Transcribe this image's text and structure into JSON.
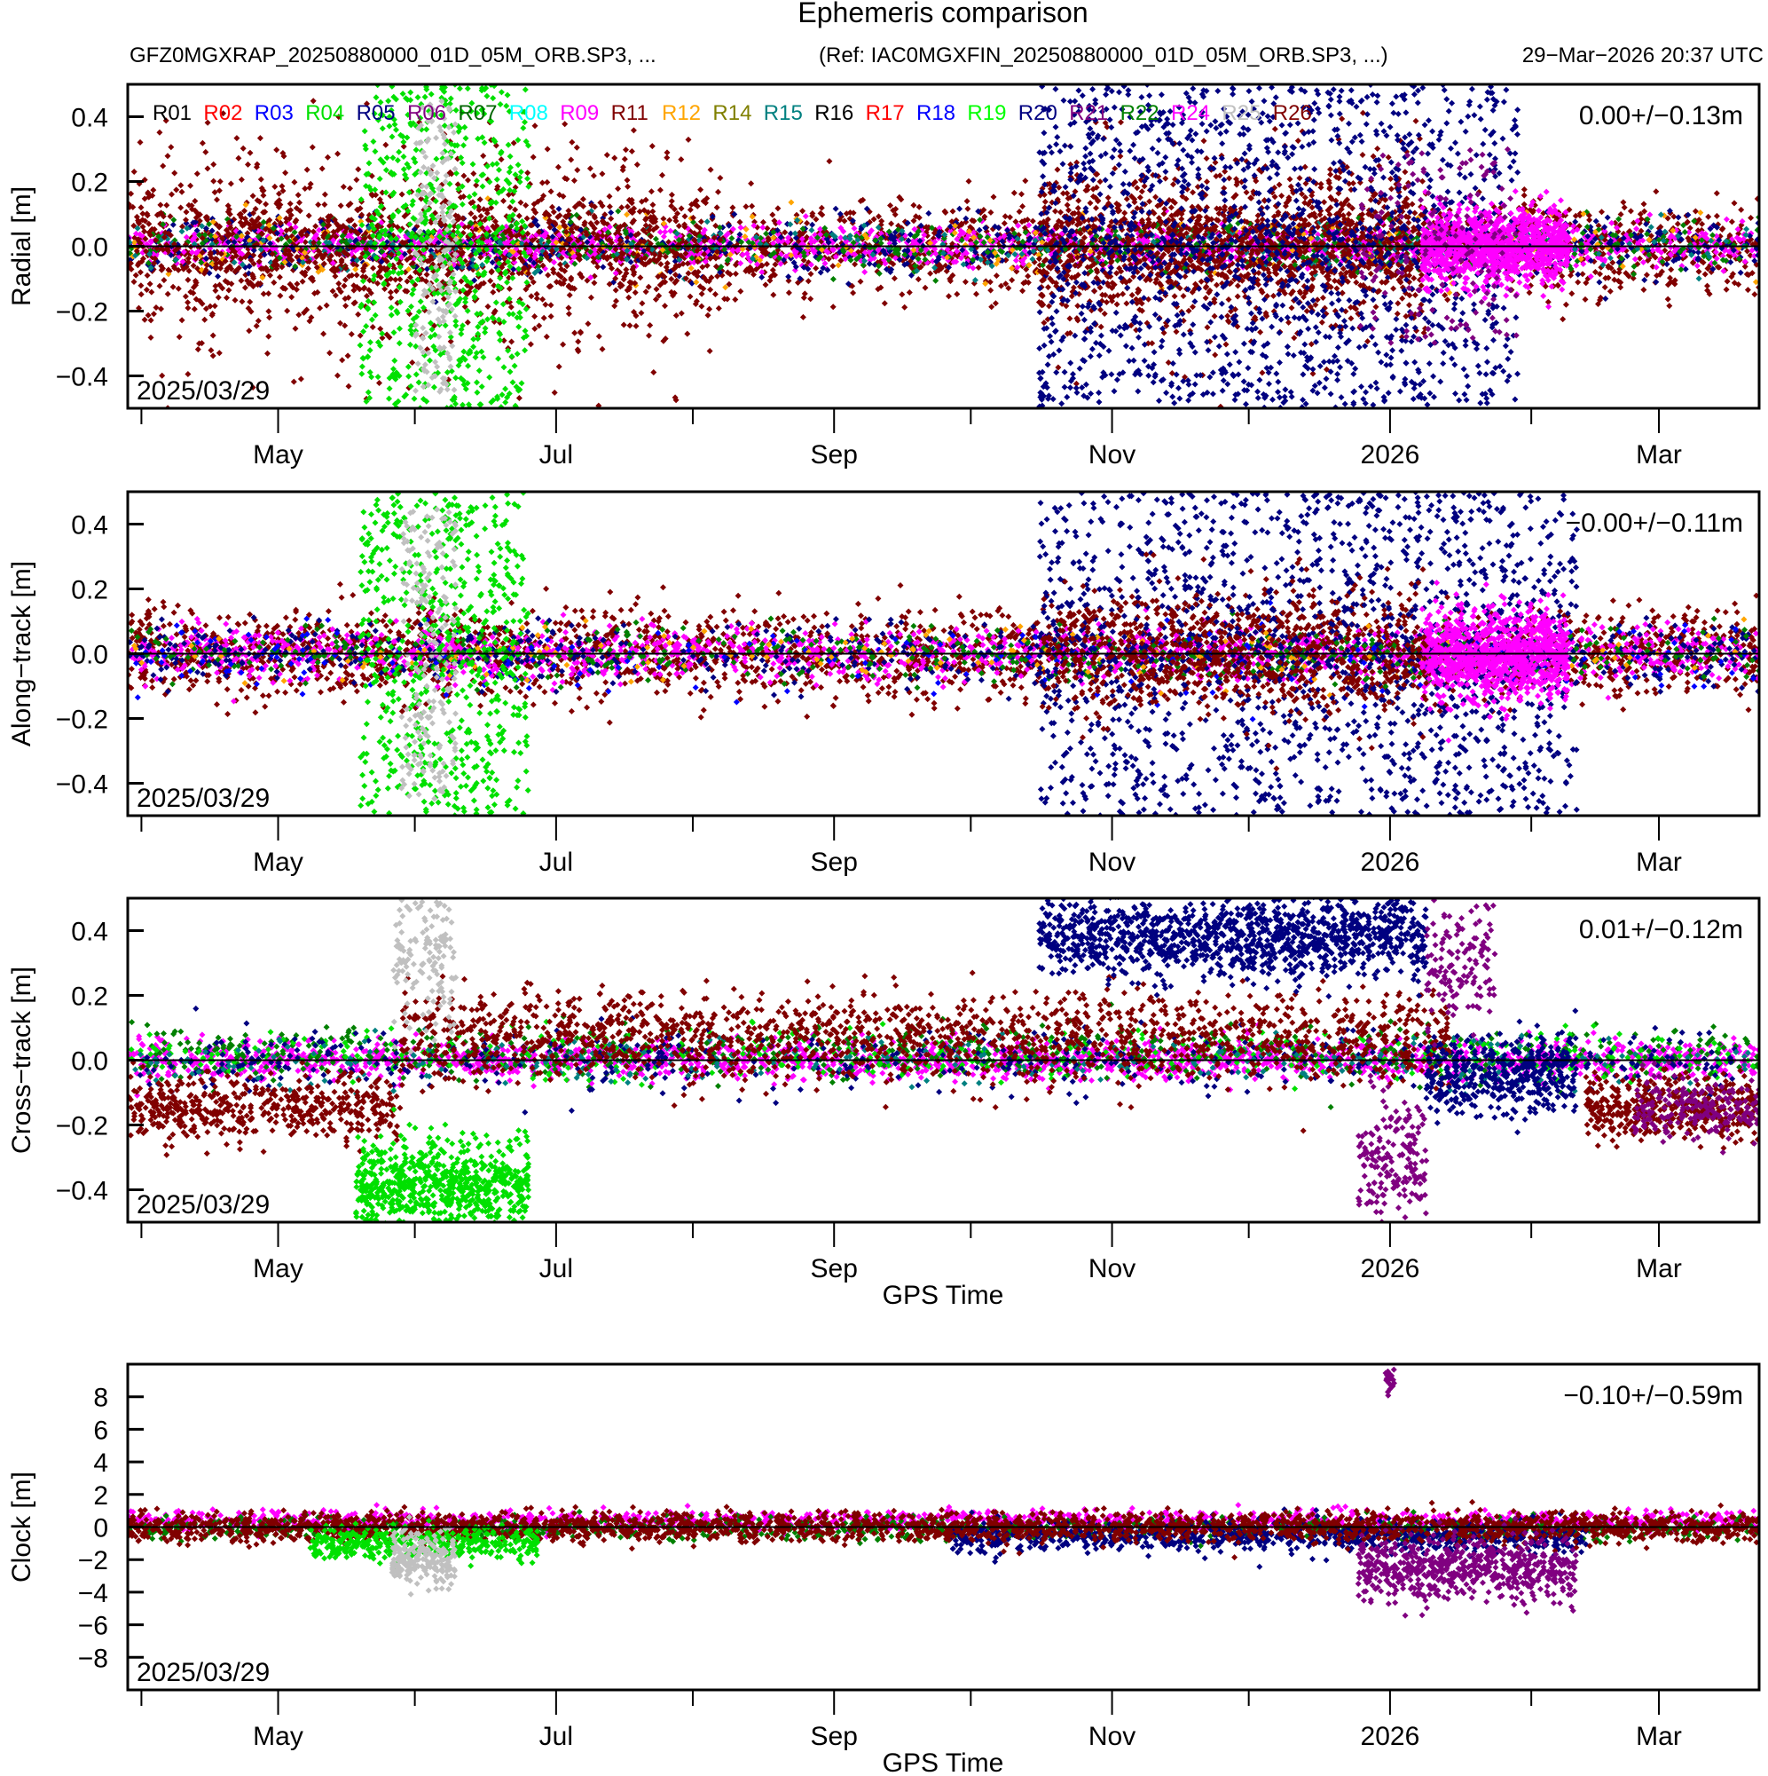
{
  "chart_data": {
    "type": "scatter",
    "title": "Ephemeris comparison",
    "subtitle_left": "GFZ0MGXRAP_20250880000_01D_05M_ORB.SP3, ...",
    "subtitle_ref": "(Ref: IAC0MGXFIN_20250880000_01D_05M_ORB.SP3, ...)",
    "timestamp": "29−Mar−2026 20:37 UTC",
    "x_range_days": [
      0,
      358
    ],
    "x_start_date": "2025/03/29",
    "x_ticks": [
      {
        "day": 3,
        "label": ""
      },
      {
        "day": 33,
        "label": "May"
      },
      {
        "day": 63,
        "label": ""
      },
      {
        "day": 94,
        "label": "Jul"
      },
      {
        "day": 124,
        "label": ""
      },
      {
        "day": 155,
        "label": "Sep"
      },
      {
        "day": 185,
        "label": ""
      },
      {
        "day": 216,
        "label": "Nov"
      },
      {
        "day": 246,
        "label": ""
      },
      {
        "day": 277,
        "label": "2026"
      },
      {
        "day": 308,
        "label": ""
      },
      {
        "day": 336,
        "label": "Mar"
      }
    ],
    "legend": [
      {
        "name": "R01",
        "color": "#000000"
      },
      {
        "name": "R02",
        "color": "#ff0000"
      },
      {
        "name": "R03",
        "color": "#0000ff"
      },
      {
        "name": "R04",
        "color": "#00e000"
      },
      {
        "name": "R05",
        "color": "#000080"
      },
      {
        "name": "R06",
        "color": "#800080"
      },
      {
        "name": "R07",
        "color": "#006400"
      },
      {
        "name": "R08",
        "color": "#00ffff"
      },
      {
        "name": "R09",
        "color": "#ff00ff"
      },
      {
        "name": "R11",
        "color": "#800000"
      },
      {
        "name": "R12",
        "color": "#ffa500"
      },
      {
        "name": "R14",
        "color": "#808000"
      },
      {
        "name": "R15",
        "color": "#008080"
      },
      {
        "name": "R16",
        "color": "#000000"
      },
      {
        "name": "R17",
        "color": "#ff0000"
      },
      {
        "name": "R18",
        "color": "#0000ff"
      },
      {
        "name": "R19",
        "color": "#00ff00"
      },
      {
        "name": "R20",
        "color": "#000080"
      },
      {
        "name": "R21",
        "color": "#800080"
      },
      {
        "name": "R22",
        "color": "#008000"
      },
      {
        "name": "R24",
        "color": "#ff00ff"
      },
      {
        "name": "R25",
        "color": "#c0c0c0"
      },
      {
        "name": "R26",
        "color": "#800000"
      }
    ],
    "panels": [
      {
        "id": "radial",
        "ylabel": "Radial [m]",
        "ylim": [
          -0.5,
          0.5
        ],
        "yticks": [
          -0.4,
          -0.2,
          0.0,
          0.2,
          0.4
        ],
        "ytick_labels": [
          "−0.4",
          "−0.2",
          "0.0",
          "0.2",
          "0.4"
        ],
        "stat": "0.00+/−0.13m",
        "date_label": "2025/03/29",
        "show_legend": true,
        "xlabel": "",
        "bands": [
          {
            "color": "#800000",
            "d0": 0,
            "d1": 358,
            "center": 0.0,
            "spread": 0.07,
            "n": 2600
          },
          {
            "color": "#ff00ff",
            "d0": 0,
            "d1": 358,
            "center": 0.0,
            "spread": 0.03,
            "n": 1400
          },
          {
            "color": "#000080",
            "d0": 0,
            "d1": 358,
            "center": 0.0,
            "spread": 0.05,
            "n": 700
          },
          {
            "color": "#008000",
            "d0": 0,
            "d1": 358,
            "center": 0.0,
            "spread": 0.04,
            "n": 500
          },
          {
            "color": "#ffa500",
            "d0": 0,
            "d1": 358,
            "center": 0.0,
            "spread": 0.05,
            "n": 200
          },
          {
            "color": "#008080",
            "d0": 0,
            "d1": 358,
            "center": 0.0,
            "spread": 0.04,
            "n": 250
          },
          {
            "color": "#800000",
            "d0": 0,
            "d1": 130,
            "center": 0.0,
            "spread": 0.16,
            "n": 900
          },
          {
            "color": "#800000",
            "d0": 200,
            "d1": 285,
            "center": 0.0,
            "spread": 0.14,
            "n": 1100
          },
          {
            "color": "#00e000",
            "d0": 51,
            "d1": 88,
            "center": 0.0,
            "spread": 0.5,
            "n": 600,
            "uniform": true
          },
          {
            "color": "#c0c0c0",
            "d0": 63,
            "d1": 72,
            "center": 0.0,
            "spread": 0.45,
            "n": 180,
            "uniform": true
          },
          {
            "color": "#000080",
            "d0": 200,
            "d1": 305,
            "center": 0.0,
            "spread": 0.5,
            "n": 1500,
            "uniform": true
          },
          {
            "color": "#ff00ff",
            "d0": 284,
            "d1": 316,
            "center": 0.0,
            "spread": 0.06,
            "n": 900
          },
          {
            "color": "#800080",
            "d0": 270,
            "d1": 305,
            "center": 0.0,
            "spread": 0.3,
            "n": 160,
            "uniform": true
          }
        ]
      },
      {
        "id": "along",
        "ylabel": "Along−track [m]",
        "ylim": [
          -0.5,
          0.5
        ],
        "yticks": [
          -0.4,
          -0.2,
          0.0,
          0.2,
          0.4
        ],
        "ytick_labels": [
          "−0.4",
          "−0.2",
          "0.0",
          "0.2",
          "0.4"
        ],
        "stat": "−0.00+/−0.11m",
        "date_label": "2025/03/29",
        "show_legend": false,
        "xlabel": "",
        "bands": [
          {
            "color": "#800000",
            "d0": 0,
            "d1": 358,
            "center": 0.0,
            "spread": 0.07,
            "n": 2600
          },
          {
            "color": "#ff00ff",
            "d0": 0,
            "d1": 358,
            "center": 0.0,
            "spread": 0.04,
            "n": 1400
          },
          {
            "color": "#000080",
            "d0": 0,
            "d1": 358,
            "center": 0.0,
            "spread": 0.05,
            "n": 700
          },
          {
            "color": "#008000",
            "d0": 0,
            "d1": 358,
            "center": 0.0,
            "spread": 0.04,
            "n": 500
          },
          {
            "color": "#0000ff",
            "d0": 0,
            "d1": 358,
            "center": 0.0,
            "spread": 0.06,
            "n": 200
          },
          {
            "color": "#ffa500",
            "d0": 0,
            "d1": 358,
            "center": 0.0,
            "spread": 0.05,
            "n": 150
          },
          {
            "color": "#00e000",
            "d0": 51,
            "d1": 88,
            "center": 0.0,
            "spread": 0.5,
            "n": 600,
            "uniform": true
          },
          {
            "color": "#c0c0c0",
            "d0": 60,
            "d1": 72,
            "center": 0.0,
            "spread": 0.45,
            "n": 200,
            "uniform": true
          },
          {
            "color": "#000080",
            "d0": 200,
            "d1": 318,
            "center": 0.0,
            "spread": 0.5,
            "n": 1500,
            "uniform": true
          },
          {
            "color": "#ff00ff",
            "d0": 284,
            "d1": 316,
            "center": 0.0,
            "spread": 0.07,
            "n": 900
          },
          {
            "color": "#800000",
            "d0": 200,
            "d1": 285,
            "center": 0.0,
            "spread": 0.1,
            "n": 600
          }
        ]
      },
      {
        "id": "cross",
        "ylabel": "Cross−track [m]",
        "ylim": [
          -0.5,
          0.5
        ],
        "yticks": [
          -0.4,
          -0.2,
          0.0,
          0.2,
          0.4
        ],
        "ytick_labels": [
          "−0.4",
          "−0.2",
          "0.0",
          "0.2",
          "0.4"
        ],
        "stat": "0.01+/−0.12m",
        "date_label": "2025/03/29",
        "show_legend": false,
        "xlabel": "GPS Time",
        "bands": [
          {
            "color": "#ff00ff",
            "d0": 0,
            "d1": 358,
            "center": 0.0,
            "spread": 0.03,
            "n": 1800
          },
          {
            "color": "#008000",
            "d0": 0,
            "d1": 358,
            "center": 0.02,
            "spread": 0.04,
            "n": 700
          },
          {
            "color": "#00e000",
            "d0": 0,
            "d1": 358,
            "center": 0.02,
            "spread": 0.04,
            "n": 400
          },
          {
            "color": "#000080",
            "d0": 0,
            "d1": 358,
            "center": 0.0,
            "spread": 0.05,
            "n": 500
          },
          {
            "color": "#008080",
            "d0": 0,
            "d1": 358,
            "center": 0.0,
            "spread": 0.04,
            "n": 300
          },
          {
            "color": "#800000",
            "d0": 0,
            "d1": 60,
            "center": -0.15,
            "spread": 0.05,
            "n": 500
          },
          {
            "color": "#800000",
            "d0": 60,
            "d1": 290,
            "center": 0.07,
            "spread": 0.07,
            "n": 1600
          },
          {
            "color": "#800000",
            "d0": 320,
            "d1": 358,
            "center": -0.15,
            "spread": 0.05,
            "n": 400
          },
          {
            "color": "#00e000",
            "d0": 50,
            "d1": 88,
            "center": -0.38,
            "spread": 0.07,
            "n": 700
          },
          {
            "color": "#c0c0c0",
            "d0": 58,
            "d1": 72,
            "center": 0.35,
            "spread": 0.12,
            "n": 160
          },
          {
            "color": "#000080",
            "d0": 200,
            "d1": 285,
            "center": 0.38,
            "spread": 0.06,
            "n": 1200
          },
          {
            "color": "#000080",
            "d0": 285,
            "d1": 318,
            "center": -0.05,
            "spread": 0.06,
            "n": 400
          },
          {
            "color": "#800080",
            "d0": 270,
            "d1": 285,
            "center": -0.3,
            "spread": 0.1,
            "n": 180
          },
          {
            "color": "#800080",
            "d0": 285,
            "d1": 300,
            "center": 0.3,
            "spread": 0.1,
            "n": 140
          },
          {
            "color": "#800080",
            "d0": 330,
            "d1": 358,
            "center": -0.15,
            "spread": 0.05,
            "n": 200
          }
        ]
      },
      {
        "id": "clock",
        "ylabel": "Clock [m]",
        "ylim": [
          -10,
          10
        ],
        "yticks": [
          -8,
          -6,
          -4,
          -2,
          0,
          2,
          4,
          6,
          8
        ],
        "ytick_labels": [
          "−8",
          "−6",
          "−4",
          "−2",
          "0",
          "2",
          "4",
          "6",
          "8"
        ],
        "stat": "−0.10+/−0.59m",
        "date_label": "2025/03/29",
        "show_legend": false,
        "xlabel": "GPS Time",
        "bands": [
          {
            "color": "#ff00ff",
            "d0": 0,
            "d1": 358,
            "center": 0.4,
            "spread": 0.3,
            "n": 1200
          },
          {
            "color": "#008000",
            "d0": 0,
            "d1": 358,
            "center": -0.1,
            "spread": 0.35,
            "n": 800
          },
          {
            "color": "#000080",
            "d0": 180,
            "d1": 320,
            "center": -0.6,
            "spread": 0.5,
            "n": 800
          },
          {
            "color": "#800000",
            "d0": 0,
            "d1": 358,
            "center": 0.0,
            "spread": 0.45,
            "n": 2400
          },
          {
            "color": "#00e000",
            "d0": 40,
            "d1": 90,
            "center": -1.0,
            "spread": 0.5,
            "n": 400
          },
          {
            "color": "#c0c0c0",
            "d0": 58,
            "d1": 72,
            "center": -2.0,
            "spread": 0.8,
            "n": 220
          },
          {
            "color": "#800080",
            "d0": 270,
            "d1": 318,
            "center": -2.6,
            "spread": 1.0,
            "n": 600
          },
          {
            "color": "#800080",
            "d0": 276,
            "d1": 278,
            "center": 9.0,
            "spread": 0.4,
            "n": 25
          }
        ]
      }
    ]
  }
}
